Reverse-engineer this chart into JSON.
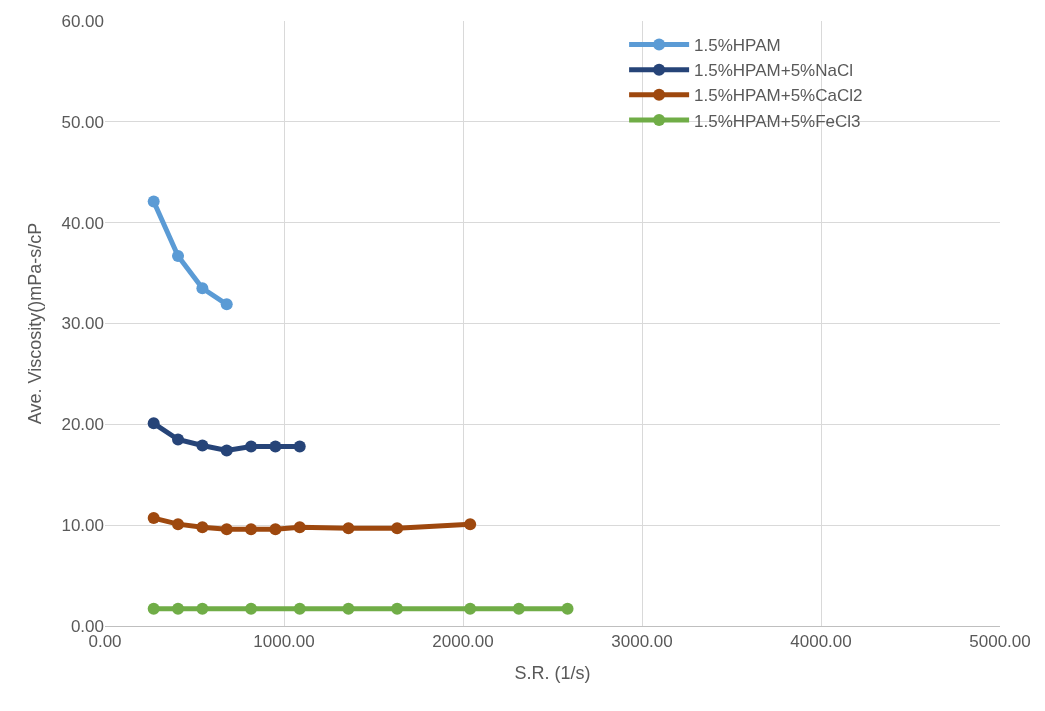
{
  "chart_data": {
    "type": "line",
    "xlabel": "S.R. (1/s)",
    "ylabel": "Ave. Viscosity()mPa-s/cP",
    "xlim": [
      0,
      5000
    ],
    "ylim": [
      0,
      60
    ],
    "xticks": [
      {
        "value": 0,
        "label": "0.00"
      },
      {
        "value": 1000,
        "label": "1000.00"
      },
      {
        "value": 2000,
        "label": "2000.00"
      },
      {
        "value": 3000,
        "label": "3000.00"
      },
      {
        "value": 4000,
        "label": "4000.00"
      },
      {
        "value": 5000,
        "label": "5000.00"
      }
    ],
    "yticks": [
      {
        "value": 0,
        "label": "0.00"
      },
      {
        "value": 10,
        "label": "10.00"
      },
      {
        "value": 20,
        "label": "20.00"
      },
      {
        "value": 30,
        "label": "30.00"
      },
      {
        "value": 40,
        "label": "40.00"
      },
      {
        "value": 50,
        "label": "50.00"
      },
      {
        "value": 60,
        "label": "60.00"
      }
    ],
    "grid": true,
    "legend": "top right",
    "marker": "circle",
    "line_style": "solid",
    "series": [
      {
        "name": "1.5%HPAM",
        "color": "#5b9bd5",
        "x": [
          272,
          408,
          544,
          680
        ],
        "values": [
          42.1,
          36.7,
          33.5,
          31.9
        ]
      },
      {
        "name": "1.5%HPAM+5%NaCl",
        "color": "#264478",
        "x": [
          272,
          408,
          544,
          680,
          816,
          952,
          1088
        ],
        "values": [
          20.1,
          18.5,
          17.9,
          17.4,
          17.8,
          17.8,
          17.8
        ]
      },
      {
        "name": "1.5%HPAM+5%CaCl2",
        "color": "#9e480e",
        "x": [
          272,
          408,
          544,
          680,
          816,
          952,
          1088,
          1360,
          1632,
          2040
        ],
        "values": [
          10.7,
          10.1,
          9.8,
          9.6,
          9.6,
          9.6,
          9.8,
          9.7,
          9.7,
          10.1
        ]
      },
      {
        "name": "1.5%HPAM+5%FeCl3",
        "color": "#70ad47",
        "x": [
          272,
          408,
          544,
          816,
          1088,
          1360,
          1632,
          2040,
          2312,
          2584
        ],
        "values": [
          1.7,
          1.7,
          1.7,
          1.7,
          1.7,
          1.7,
          1.7,
          1.7,
          1.7,
          1.7
        ]
      }
    ]
  }
}
